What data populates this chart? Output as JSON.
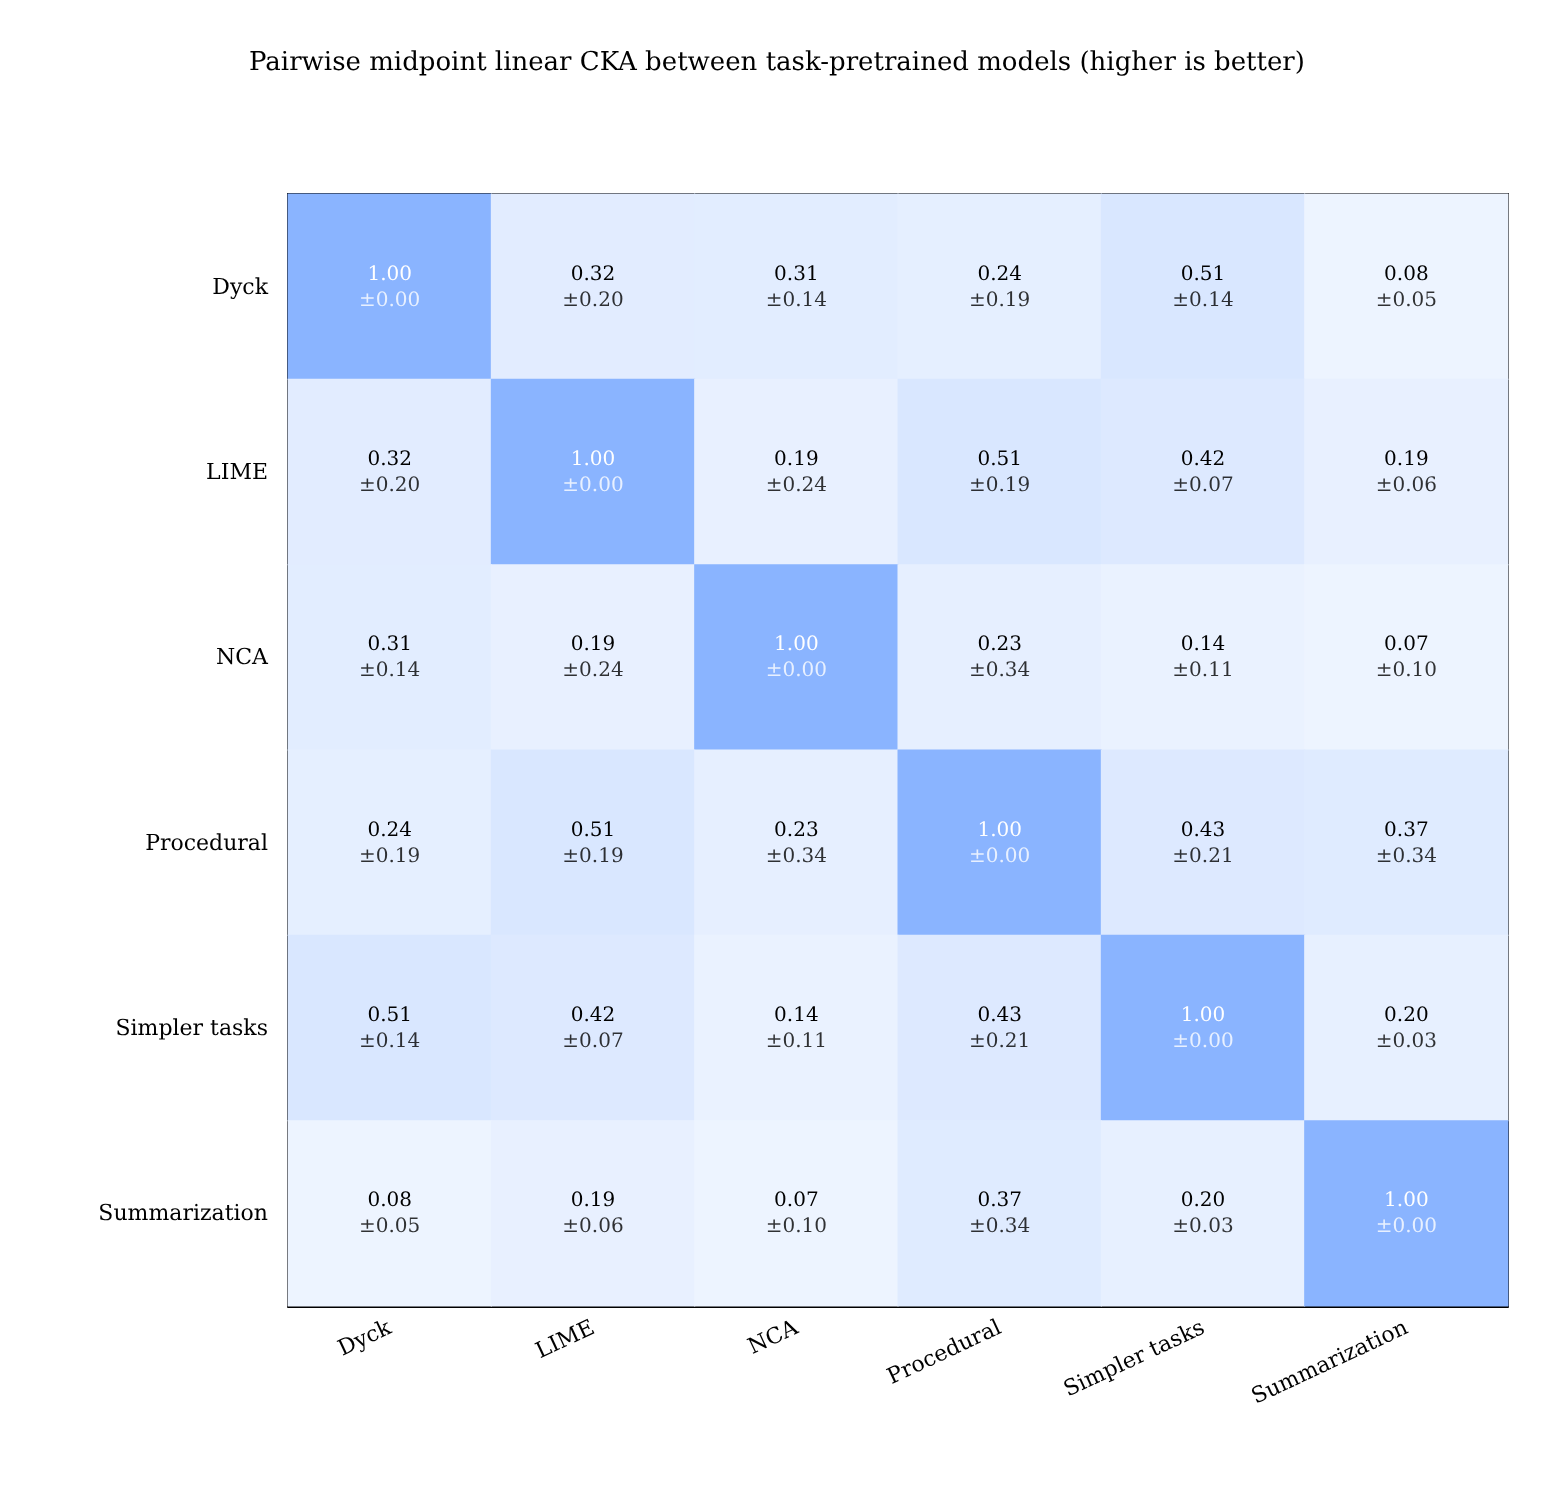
{
  "chart_data": {
    "type": "heatmap",
    "title": "Pairwise midpoint linear CKA between task-pretrained models (higher is better)",
    "categories": [
      "Dyck",
      "LIME",
      "NCA",
      "Procedural",
      "Simpler tasks",
      "Summarization"
    ],
    "y_categories": [
      "Dyck",
      "LIME",
      "NCA",
      "Procedural",
      "Simpler tasks",
      "Summarization"
    ],
    "colors": [
      "#edf4ff",
      "#d8e6ff",
      "#8ab4ff"
    ],
    "cells": [
      [
        1.0,
        0.32,
        0.31,
        0.24,
        0.51,
        0.08
      ],
      [
        0.32,
        1.0,
        0.19,
        0.51,
        0.42,
        0.19
      ],
      [
        0.31,
        0.19,
        1.0,
        0.23,
        0.14,
        0.07
      ],
      [
        0.24,
        0.51,
        0.23,
        1.0,
        0.43,
        0.37
      ],
      [
        0.51,
        0.42,
        0.14,
        0.43,
        1.0,
        0.2
      ],
      [
        0.08,
        0.19,
        0.07,
        0.37,
        0.2,
        1.0
      ]
    ],
    "cell_labels": [
      [
        "1.00",
        "0.32",
        "0.31",
        "0.24",
        "0.51",
        "0.08"
      ],
      [
        "0.32",
        "1.00",
        "0.19",
        "0.51",
        "0.42",
        "0.19"
      ],
      [
        "0.31",
        "0.19",
        "1.00",
        "0.23",
        "0.14",
        "0.07"
      ],
      [
        "0.24",
        "0.51",
        "0.23",
        "1.00",
        "0.43",
        "0.37"
      ],
      [
        "0.51",
        "0.42",
        "0.14",
        "0.43",
        "1.00",
        "0.20"
      ],
      [
        "0.08",
        "0.19",
        "0.07",
        "0.37",
        "0.20",
        "1.00"
      ]
    ],
    "annotations": [
      "±0.00",
      "±0.20",
      "±0.14",
      "±0.19",
      "±0.14",
      "±0.05",
      "±0.20",
      "±0.00",
      "±0.24",
      "±0.19",
      "±0.07",
      "±0.06",
      "±0.14",
      "±0.24",
      "±0.00",
      "±0.34",
      "±0.11",
      "±0.10",
      "±0.19",
      "±0.19",
      "±0.34",
      "±0.00",
      "±0.21",
      "±0.34",
      "±0.14",
      "±0.07",
      "±0.11",
      "±0.21",
      "±0.00",
      "±0.03",
      "±0.05",
      "±0.06",
      "±0.10",
      "±0.34",
      "±0.03",
      "±0.00"
    ]
  }
}
